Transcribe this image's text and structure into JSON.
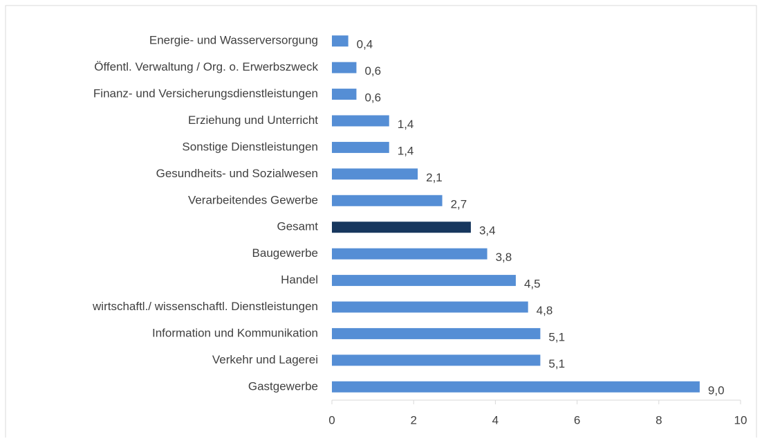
{
  "chart_data": {
    "type": "hbar",
    "categories": [
      "Energie- und Wasserversorgung",
      "Öffentl. Verwaltung / Org. o. Erwerbszweck",
      "Finanz- und Versicherungsdienstleistungen",
      "Erziehung und Unterricht",
      "Sonstige Dienstleistungen",
      "Gesundheits- und Sozialwesen",
      "Verarbeitendes Gewerbe",
      "Gesamt",
      "Baugewerbe",
      "Handel",
      "wirtschaftl./ wissenschaftl. Dienstleistungen",
      "Information und Kommunikation",
      "Verkehr und Lagerei",
      "Gastgewerbe"
    ],
    "values": [
      0.4,
      0.6,
      0.6,
      1.4,
      1.4,
      2.1,
      2.7,
      3.4,
      3.8,
      4.5,
      4.8,
      5.1,
      5.1,
      9.0
    ],
    "value_labels": [
      "0,4",
      "0,6",
      "0,6",
      "1,4",
      "1,4",
      "2,1",
      "2,7",
      "3,4",
      "3,8",
      "4,5",
      "4,8",
      "5,1",
      "5,1",
      "9,0"
    ],
    "colors": [
      "#558ed5",
      "#558ed5",
      "#558ed5",
      "#558ed5",
      "#558ed5",
      "#558ed5",
      "#558ed5",
      "#17375e",
      "#558ed5",
      "#558ed5",
      "#558ed5",
      "#558ed5",
      "#558ed5",
      "#558ed5"
    ],
    "xlim": [
      0,
      10
    ],
    "xticks": [
      0,
      2,
      4,
      6,
      8,
      10
    ],
    "grid": false
  }
}
